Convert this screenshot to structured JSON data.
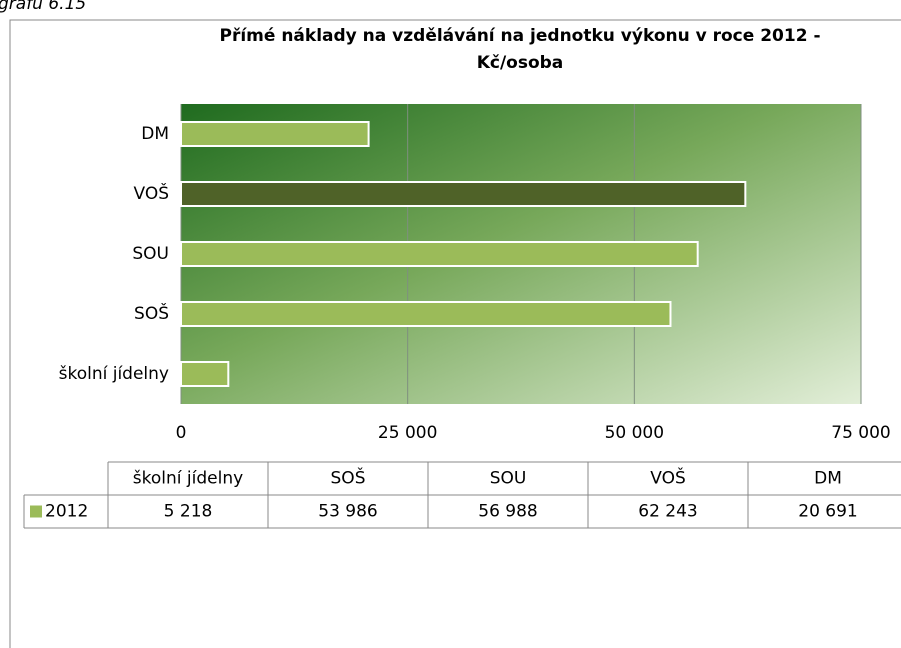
{
  "chart_data": {
    "type": "barh",
    "caption": "grafu 6.15",
    "title": [
      "Přímé náklady na vzdělávání na jednotku výkonu v roce 2012 -",
      "Kč/osoba"
    ],
    "categories": [
      "školní jídelny",
      "SOŠ",
      "SOU",
      "VOŠ",
      "DM"
    ],
    "series": [
      {
        "name": "2012",
        "color": "#9bbb59",
        "values": [
          5218,
          53986,
          56988,
          62243,
          20691
        ],
        "value_labels": [
          "5 218",
          "53 986",
          "56 988",
          "62 243",
          "20 691"
        ],
        "colors": [
          "#9bbb59",
          "#9bbb59",
          "#9bbb59",
          "#4f6228",
          "#9bbb59"
        ]
      }
    ],
    "xlim": [
      0,
      75000
    ],
    "xticks": [
      0,
      {
        "value": 25000,
        "label": "25 000"
      },
      {
        "value": 50000,
        "label": "50 000"
      },
      {
        "value": 75000,
        "label": "75 000"
      }
    ],
    "grid": true,
    "data_table": true
  }
}
